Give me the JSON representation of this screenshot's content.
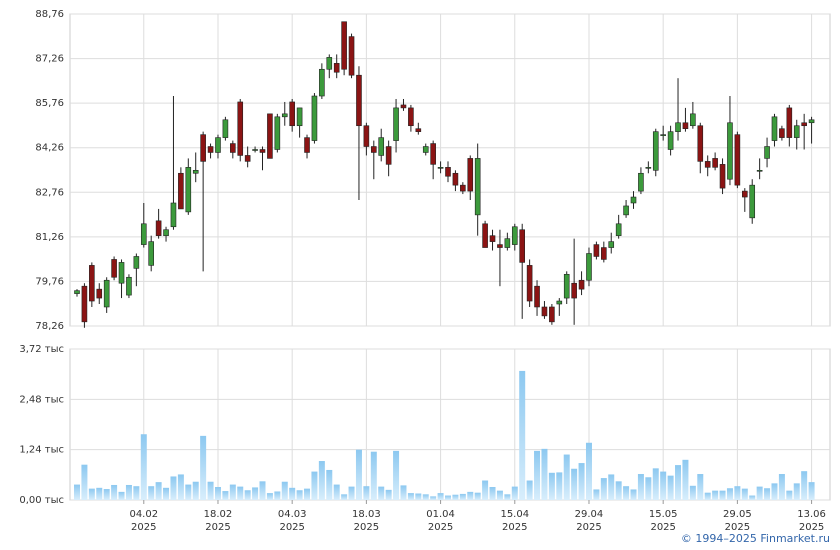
{
  "chart_data": [
    {
      "type": "candlestick",
      "up_color": "#3c9a3c",
      "down_color": "#8b1414",
      "grid": true,
      "ylim": [
        78.26,
        88.76
      ],
      "yticks": [
        {
          "value": 78.26,
          "label": "78,26"
        },
        {
          "value": 79.76,
          "label": "79,76"
        },
        {
          "value": 81.26,
          "label": "81,26"
        },
        {
          "value": 82.76,
          "label": "82,76"
        },
        {
          "value": 84.26,
          "label": "84,26"
        },
        {
          "value": 85.76,
          "label": "85,76"
        },
        {
          "value": 87.26,
          "label": "87,26"
        },
        {
          "value": 88.76,
          "label": "88,76"
        }
      ],
      "open": [
        79.35,
        79.6,
        80.3,
        79.5,
        78.9,
        80.5,
        79.7,
        79.3,
        80.2,
        81.0,
        80.3,
        81.8,
        81.3,
        81.6,
        83.4,
        82.1,
        83.4,
        84.7,
        84.3,
        84.1,
        84.6,
        84.4,
        85.8,
        84.0,
        84.2,
        84.2,
        85.4,
        84.2,
        85.3,
        85.8,
        85.0,
        84.6,
        84.5,
        86.0,
        86.9,
        87.1,
        88.5,
        88.0,
        86.7,
        85.0,
        84.3,
        84.0,
        84.3,
        84.5,
        85.7,
        85.6,
        84.9,
        84.1,
        84.4,
        83.6,
        83.6,
        83.4,
        83.0,
        83.9,
        82.0,
        81.7,
        81.3,
        81.0,
        80.9,
        81.0,
        81.5,
        80.3,
        79.6,
        78.9,
        78.9,
        79.0,
        79.2,
        79.7,
        79.8,
        79.8,
        81.0,
        80.9,
        80.9,
        81.3,
        82.0,
        82.4,
        82.8,
        83.6,
        83.5,
        84.7,
        84.2,
        84.8,
        85.1,
        85.0,
        85.0,
        83.8,
        83.9,
        83.7,
        83.2,
        84.7,
        82.8,
        81.9,
        83.5,
        83.9,
        84.5,
        84.9,
        85.6,
        84.6,
        85.1,
        85.1
      ],
      "high": [
        79.5,
        79.7,
        80.4,
        79.7,
        79.9,
        80.6,
        80.5,
        80.0,
        80.7,
        82.4,
        81.3,
        82.2,
        81.6,
        86.0,
        83.6,
        83.9,
        84.1,
        84.8,
        84.4,
        84.7,
        85.3,
        84.5,
        85.9,
        84.3,
        84.3,
        84.3,
        85.4,
        85.4,
        85.8,
        85.9,
        85.6,
        84.7,
        86.1,
        87.1,
        87.4,
        87.4,
        88.5,
        88.1,
        87.0,
        85.1,
        84.5,
        84.9,
        84.5,
        85.9,
        85.9,
        85.7,
        85.1,
        84.4,
        84.5,
        83.8,
        83.8,
        83.5,
        83.1,
        84.0,
        84.4,
        81.8,
        81.5,
        81.5,
        81.4,
        81.7,
        81.7,
        80.5,
        79.8,
        79.1,
        79.0,
        79.2,
        80.1,
        81.2,
        80.1,
        80.9,
        81.1,
        81.1,
        81.4,
        82.0,
        82.5,
        82.8,
        83.6,
        83.8,
        84.9,
        85.0,
        85.0,
        86.6,
        85.6,
        85.8,
        85.1,
        84.0,
        84.1,
        83.9,
        86.0,
        84.8,
        82.9,
        83.2,
        83.9,
        84.6,
        85.4,
        85.0,
        85.7,
        85.2,
        85.4,
        85.3
      ],
      "low": [
        79.25,
        78.2,
        78.9,
        79.0,
        78.7,
        79.8,
        79.2,
        79.2,
        79.6,
        80.9,
        80.1,
        81.2,
        81.1,
        81.5,
        82.2,
        82.0,
        83.1,
        80.1,
        83.9,
        83.9,
        84.5,
        83.9,
        83.8,
        83.6,
        84.1,
        83.5,
        83.9,
        84.1,
        85.0,
        84.8,
        84.6,
        83.9,
        84.4,
        85.9,
        86.6,
        86.6,
        86.7,
        86.6,
        82.5,
        84.0,
        83.2,
        83.8,
        83.3,
        84.1,
        85.5,
        84.8,
        84.7,
        84.0,
        83.2,
        83.4,
        83.1,
        82.8,
        82.7,
        82.5,
        81.3,
        80.9,
        80.8,
        79.6,
        80.8,
        80.8,
        78.5,
        78.9,
        78.6,
        78.5,
        78.3,
        78.6,
        79.0,
        78.3,
        79.3,
        79.6,
        80.5,
        80.4,
        80.7,
        81.2,
        81.9,
        82.2,
        82.7,
        83.4,
        83.3,
        84.5,
        84.0,
        84.5,
        84.8,
        84.9,
        83.4,
        83.3,
        83.5,
        82.7,
        83.0,
        82.9,
        82.1,
        81.7,
        83.2,
        83.6,
        84.3,
        84.5,
        84.3,
        84.2,
        84.2,
        84.4
      ],
      "close": [
        79.45,
        78.4,
        79.1,
        79.2,
        79.8,
        79.9,
        80.4,
        79.9,
        80.6,
        81.7,
        81.1,
        81.3,
        81.5,
        82.4,
        82.2,
        83.6,
        83.5,
        83.8,
        84.1,
        84.6,
        85.2,
        84.1,
        84.0,
        83.8,
        84.2,
        84.1,
        83.9,
        85.3,
        85.4,
        85.0,
        85.6,
        84.1,
        86.0,
        86.9,
        87.3,
        86.8,
        86.9,
        86.7,
        85.0,
        84.3,
        84.1,
        84.6,
        83.7,
        85.6,
        85.6,
        85.0,
        84.8,
        84.3,
        83.7,
        83.6,
        83.3,
        83.0,
        82.8,
        82.8,
        83.9,
        80.9,
        81.1,
        80.9,
        81.2,
        81.6,
        80.4,
        79.1,
        78.9,
        78.6,
        78.4,
        79.1,
        80.0,
        79.2,
        79.5,
        80.7,
        80.6,
        80.5,
        81.1,
        81.7,
        82.3,
        82.6,
        83.4,
        83.6,
        84.8,
        84.7,
        84.8,
        85.1,
        84.9,
        85.4,
        83.8,
        83.6,
        83.6,
        82.9,
        85.1,
        83.0,
        82.6,
        83.0,
        83.5,
        84.3,
        85.3,
        84.6,
        84.6,
        85.0,
        85.0,
        85.2
      ]
    },
    {
      "type": "bar",
      "color": "#8cc8f0",
      "grid": true,
      "ylim": [
        0,
        3720
      ],
      "yticks": [
        {
          "value": 0,
          "label": "0,00 тыс"
        },
        {
          "value": 1240,
          "label": "1,24 тыс"
        },
        {
          "value": 2480,
          "label": "2,48 тыс"
        },
        {
          "value": 3720,
          "label": "3,72 тыс"
        }
      ],
      "categories": [
        null,
        null,
        null,
        null,
        null,
        null,
        null,
        null,
        null,
        "04.02\n2025",
        null,
        null,
        null,
        null,
        null,
        null,
        null,
        null,
        null,
        "18.02\n2025",
        null,
        null,
        null,
        null,
        null,
        null,
        null,
        null,
        null,
        "04.03\n2025",
        null,
        null,
        null,
        null,
        null,
        null,
        null,
        null,
        null,
        "18.03\n2025",
        null,
        null,
        null,
        null,
        null,
        null,
        null,
        null,
        null,
        "01.04\n2025",
        null,
        null,
        null,
        null,
        null,
        null,
        null,
        null,
        null,
        "15.04\n2025",
        null,
        null,
        null,
        null,
        null,
        null,
        null,
        null,
        null,
        "29.04\n2025",
        null,
        null,
        null,
        null,
        null,
        null,
        null,
        null,
        null,
        "15.05\n2025",
        null,
        null,
        null,
        null,
        null,
        null,
        null,
        null,
        null,
        "29.05\n2025",
        null,
        null,
        null,
        null,
        null,
        null,
        null,
        null,
        null,
        "13.06\n2025"
      ],
      "values": [
        380,
        870,
        280,
        300,
        270,
        370,
        200,
        370,
        340,
        1620,
        340,
        440,
        300,
        580,
        630,
        380,
        450,
        1580,
        450,
        320,
        220,
        380,
        330,
        240,
        310,
        460,
        170,
        210,
        450,
        300,
        240,
        280,
        700,
        960,
        740,
        380,
        140,
        330,
        1240,
        340,
        1190,
        330,
        250,
        1210,
        360,
        170,
        160,
        140,
        90,
        170,
        110,
        130,
        150,
        200,
        180,
        480,
        320,
        230,
        140,
        330,
        3180,
        480,
        1210,
        1260,
        670,
        680,
        1120,
        770,
        910,
        1410,
        260,
        540,
        630,
        460,
        340,
        260,
        640,
        560,
        780,
        700,
        600,
        860,
        990,
        350,
        640,
        180,
        230,
        230,
        290,
        340,
        280,
        110,
        330,
        290,
        410,
        640,
        230,
        410,
        710,
        440
      ]
    }
  ],
  "footer": "© 1994–2025 Finmarket.ru"
}
